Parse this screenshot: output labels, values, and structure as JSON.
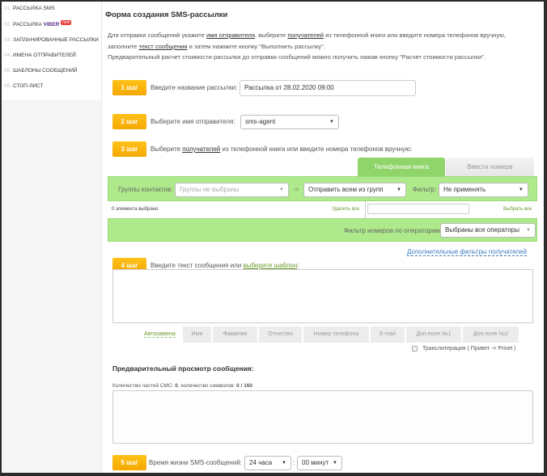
{
  "sidebar": {
    "items": [
      {
        "num": "01.",
        "label": "Рассылка SMS"
      },
      {
        "num": "02.",
        "label": "Рассылка ",
        "brand": "VIBER",
        "badge": "new"
      },
      {
        "num": "03.",
        "label": "Запланированные рассылки"
      },
      {
        "num": "04.",
        "label": "Имена отправителей"
      },
      {
        "num": "05.",
        "label": "Шаблоны сообщений"
      },
      {
        "num": "06.",
        "label": "Стоп-лист"
      }
    ]
  },
  "title": "Форма создания SMS-рассылки",
  "intro": {
    "l1a": "Для отправки сообщений укажите ",
    "l1b": "имя отправителя",
    ", ": "",
    "l1c": ", выберите ",
    "l1d": "получателей",
    "l1e": " из телефонной книги или введите номера телефонов вручную,",
    "l2a": "заполните ",
    "l2b": "текст сообщения",
    "l2c": " и затем нажмите кнопку \"Выполнить рассылку\".",
    "l3": "Предварительный расчет стоимости рассылки до отправки сообщений можно получить нажав кнопку \"Расчет стоимости рассылки\"."
  },
  "step1": {
    "badge": "1 шаг",
    "label": "Введите название рассылки:",
    "value": "Рассылка от 28.02.2020 09:00"
  },
  "step2": {
    "badge": "2 шаг",
    "label": "Выберите имя отправителя:",
    "value": "sms-agent"
  },
  "step3": {
    "badge": "3 шаг",
    "label_a": "Выберите ",
    "label_link": "получателей",
    "label_b": " из телефонной книги или введите номера телефонов вручную:"
  },
  "tabs": [
    {
      "label": "Телефонная книга",
      "active": true
    },
    {
      "label": "Ввести номера",
      "active": false
    }
  ],
  "groups": {
    "label": "Группы контактов:",
    "placeholder": "Группы не выбраны",
    "arrow": "->",
    "send": "Отправить всем из групп",
    "filter_label": "Фильтр:",
    "filter_value": "Не применять"
  },
  "selection": {
    "count": "0 элемента выбрано",
    "remove_all": "Удалить все",
    "select_all": "Выбрать все",
    "search_value": ""
  },
  "operators": {
    "label": "Фильтр номеров по операторам:",
    "value": "Выбраны все операторы"
  },
  "extra_filters": "Дополнительные фильтры получателей",
  "step4": {
    "badge": "4 шаг",
    "label_a": "Введите текст сообщения или ",
    "label_link": "выберите шаблон",
    "label_b": ":",
    "text": ""
  },
  "autoreplace": {
    "label": "Автозамена",
    "buttons": [
      "Имя",
      "Фамилия",
      "Отчество",
      "Номер телефона",
      "E-mail",
      "Доп.поле №1",
      "Доп.поле №2"
    ]
  },
  "translit": {
    "label": "Транслитерация ( Привет -> Privet )",
    "checked": false
  },
  "preview": {
    "title": "Предварительный просмотр сообщения:",
    "count_a": "Количество частей СМС: ",
    "parts": "0",
    "count_b": ", количество символов: ",
    "chars": "0 / 160"
  },
  "step5": {
    "badge": "5 шаг",
    "label": "Время жизни SMS-сообщений:",
    "hours": "24 часа",
    "sep": ":",
    "minutes": "00 минут"
  },
  "colors": {
    "accent": "#f5a800",
    "green": "#aee98b",
    "tab_active": "#8fd56a"
  }
}
